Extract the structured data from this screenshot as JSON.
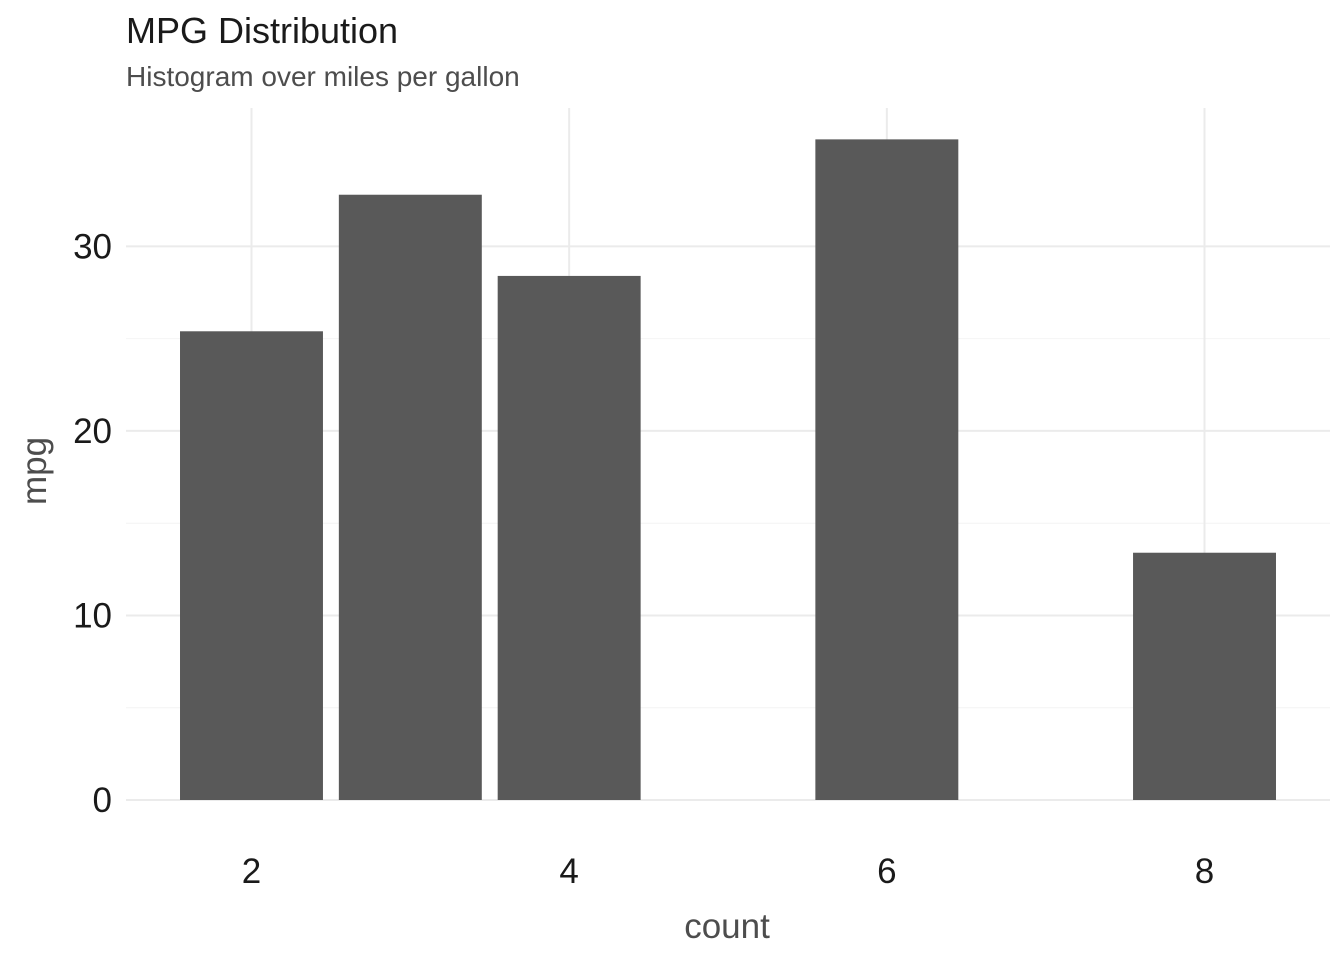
{
  "chart_data": {
    "type": "bar",
    "title": "MPG Distribution",
    "subtitle": "Histogram over miles per gallon",
    "xlabel": "count",
    "ylabel": "mpg",
    "x": [
      2,
      3,
      4,
      6,
      8
    ],
    "values": [
      25.4,
      32.8,
      28.4,
      35.8,
      13.4
    ],
    "bar_width": 0.9,
    "xlim": [
      1.21,
      8.79
    ],
    "ylim": [
      0,
      37.5
    ],
    "x_ticks": [
      2,
      4,
      6,
      8
    ],
    "y_ticks": [
      0,
      10,
      20,
      30
    ],
    "grid": true,
    "bar_color": "#595959",
    "grid_color": "#ebebeb"
  }
}
